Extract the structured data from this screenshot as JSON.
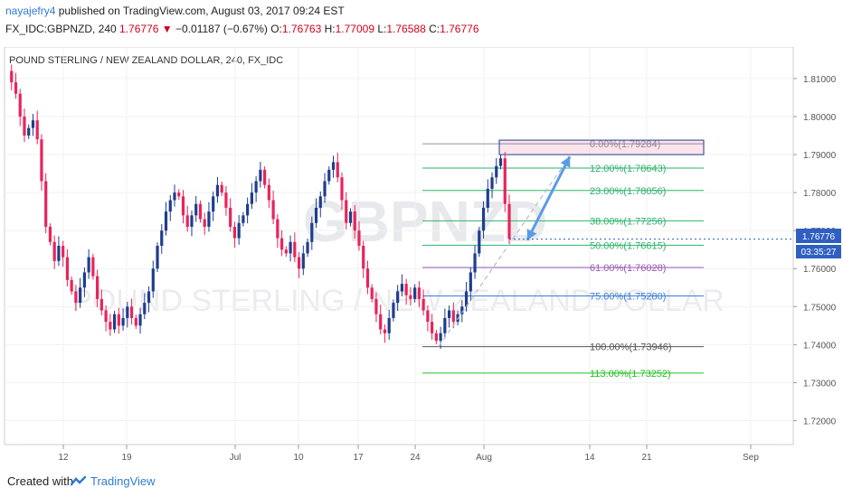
{
  "header": {
    "author": "nayajefry4",
    "published_text": "published on TradingView.com, August 03, 2017 09:24 EST",
    "symbol": "FX_IDC:GBPNZD, 240",
    "last": "1.76776",
    "change": "−0.01187 (−0.67%)",
    "o_label": "O:",
    "o_value": "1.76763",
    "h_label": "H:",
    "h_value": "1.77009",
    "l_label": "L:",
    "l_value": "1.76588",
    "c_label": "C:",
    "c_value": "1.76776"
  },
  "chart": {
    "title": "POUND STERLING / NEW ZEALAND DOLLAR, 240, FX_IDC",
    "watermark_symbol": "GBPNZD",
    "watermark_name": "POUND STERLING / NEW ZEALAND DOLLAR",
    "price_tag": "1.76776",
    "countdown": "03:35:27",
    "colors": {
      "up": "#1f3d8f",
      "down": "#e8245a",
      "bg": "#f4f5f7",
      "accent": "#2f7bd1"
    }
  },
  "chart_data": {
    "type": "candlestick",
    "title": "POUND STERLING / NEW ZEALAND DOLLAR, 240, FX_IDC",
    "y_ticks": [
      "1.81000",
      "1.80000",
      "1.79000",
      "1.78000",
      "1.77000",
      "1.76000",
      "1.75000",
      "1.74000",
      "1.73000",
      "1.72000"
    ],
    "y_tick_values": [
      1.81,
      1.8,
      1.79,
      1.78,
      1.77,
      1.76,
      1.75,
      1.74,
      1.73,
      1.72
    ],
    "x_ticks": [
      "12",
      "19",
      "Jul",
      "10",
      "17",
      "24",
      "Aug",
      "14",
      "21",
      "Sep"
    ],
    "ylim": [
      1.7137,
      1.8183
    ],
    "price_path": [
      1.812,
      1.809,
      1.806,
      1.8,
      1.795,
      1.797,
      1.799,
      1.794,
      1.783,
      1.771,
      1.767,
      1.762,
      1.766,
      1.763,
      1.757,
      1.754,
      1.751,
      1.755,
      1.759,
      1.763,
      1.758,
      1.752,
      1.749,
      1.746,
      1.744,
      1.748,
      1.745,
      1.747,
      1.75,
      1.747,
      1.745,
      1.748,
      1.751,
      1.754,
      1.76,
      1.766,
      1.77,
      1.775,
      1.778,
      1.78,
      1.779,
      1.774,
      1.771,
      1.774,
      1.777,
      1.773,
      1.771,
      1.775,
      1.779,
      1.782,
      1.78,
      1.776,
      1.771,
      1.768,
      1.772,
      1.774,
      1.777,
      1.78,
      1.783,
      1.786,
      1.782,
      1.778,
      1.773,
      1.768,
      1.765,
      1.764,
      1.767,
      1.763,
      1.76,
      1.764,
      1.767,
      1.772,
      1.776,
      1.779,
      1.783,
      1.786,
      1.788,
      1.784,
      1.778,
      1.772,
      1.775,
      1.77,
      1.766,
      1.76,
      1.755,
      1.752,
      1.748,
      1.744,
      1.743,
      1.747,
      1.751,
      1.754,
      1.756,
      1.753,
      1.752,
      1.755,
      1.752,
      1.749,
      1.746,
      1.743,
      1.741,
      1.743,
      1.747,
      1.749,
      1.746,
      1.748,
      1.75,
      1.754,
      1.759,
      1.764,
      1.77,
      1.776,
      1.781,
      1.784,
      1.787,
      1.789,
      1.777,
      1.7678
    ],
    "fib_levels": [
      {
        "ratio": "0.00%",
        "value": "1.79284",
        "color": "#8a94a6"
      },
      {
        "ratio": "12.00%",
        "value": "1.78643",
        "color": "#2db36b"
      },
      {
        "ratio": "23.00%",
        "value": "1.78056",
        "color": "#2db36b"
      },
      {
        "ratio": "38.00%",
        "value": "1.77256",
        "color": "#2db36b"
      },
      {
        "ratio": "50.00%",
        "value": "1.76615",
        "color": "#2db36b"
      },
      {
        "ratio": "61.00%",
        "value": "1.76028",
        "color": "#9b59b6"
      },
      {
        "ratio": "75.00%",
        "value": "1.75280",
        "color": "#3a7fd5"
      },
      {
        "ratio": "100.00%",
        "value": "1.73946",
        "color": "#555555"
      },
      {
        "ratio": "113.00%",
        "value": "1.73252",
        "color": "#22c022"
      }
    ]
  },
  "footer": {
    "created_with": "Created with",
    "brand": "TradingView"
  }
}
